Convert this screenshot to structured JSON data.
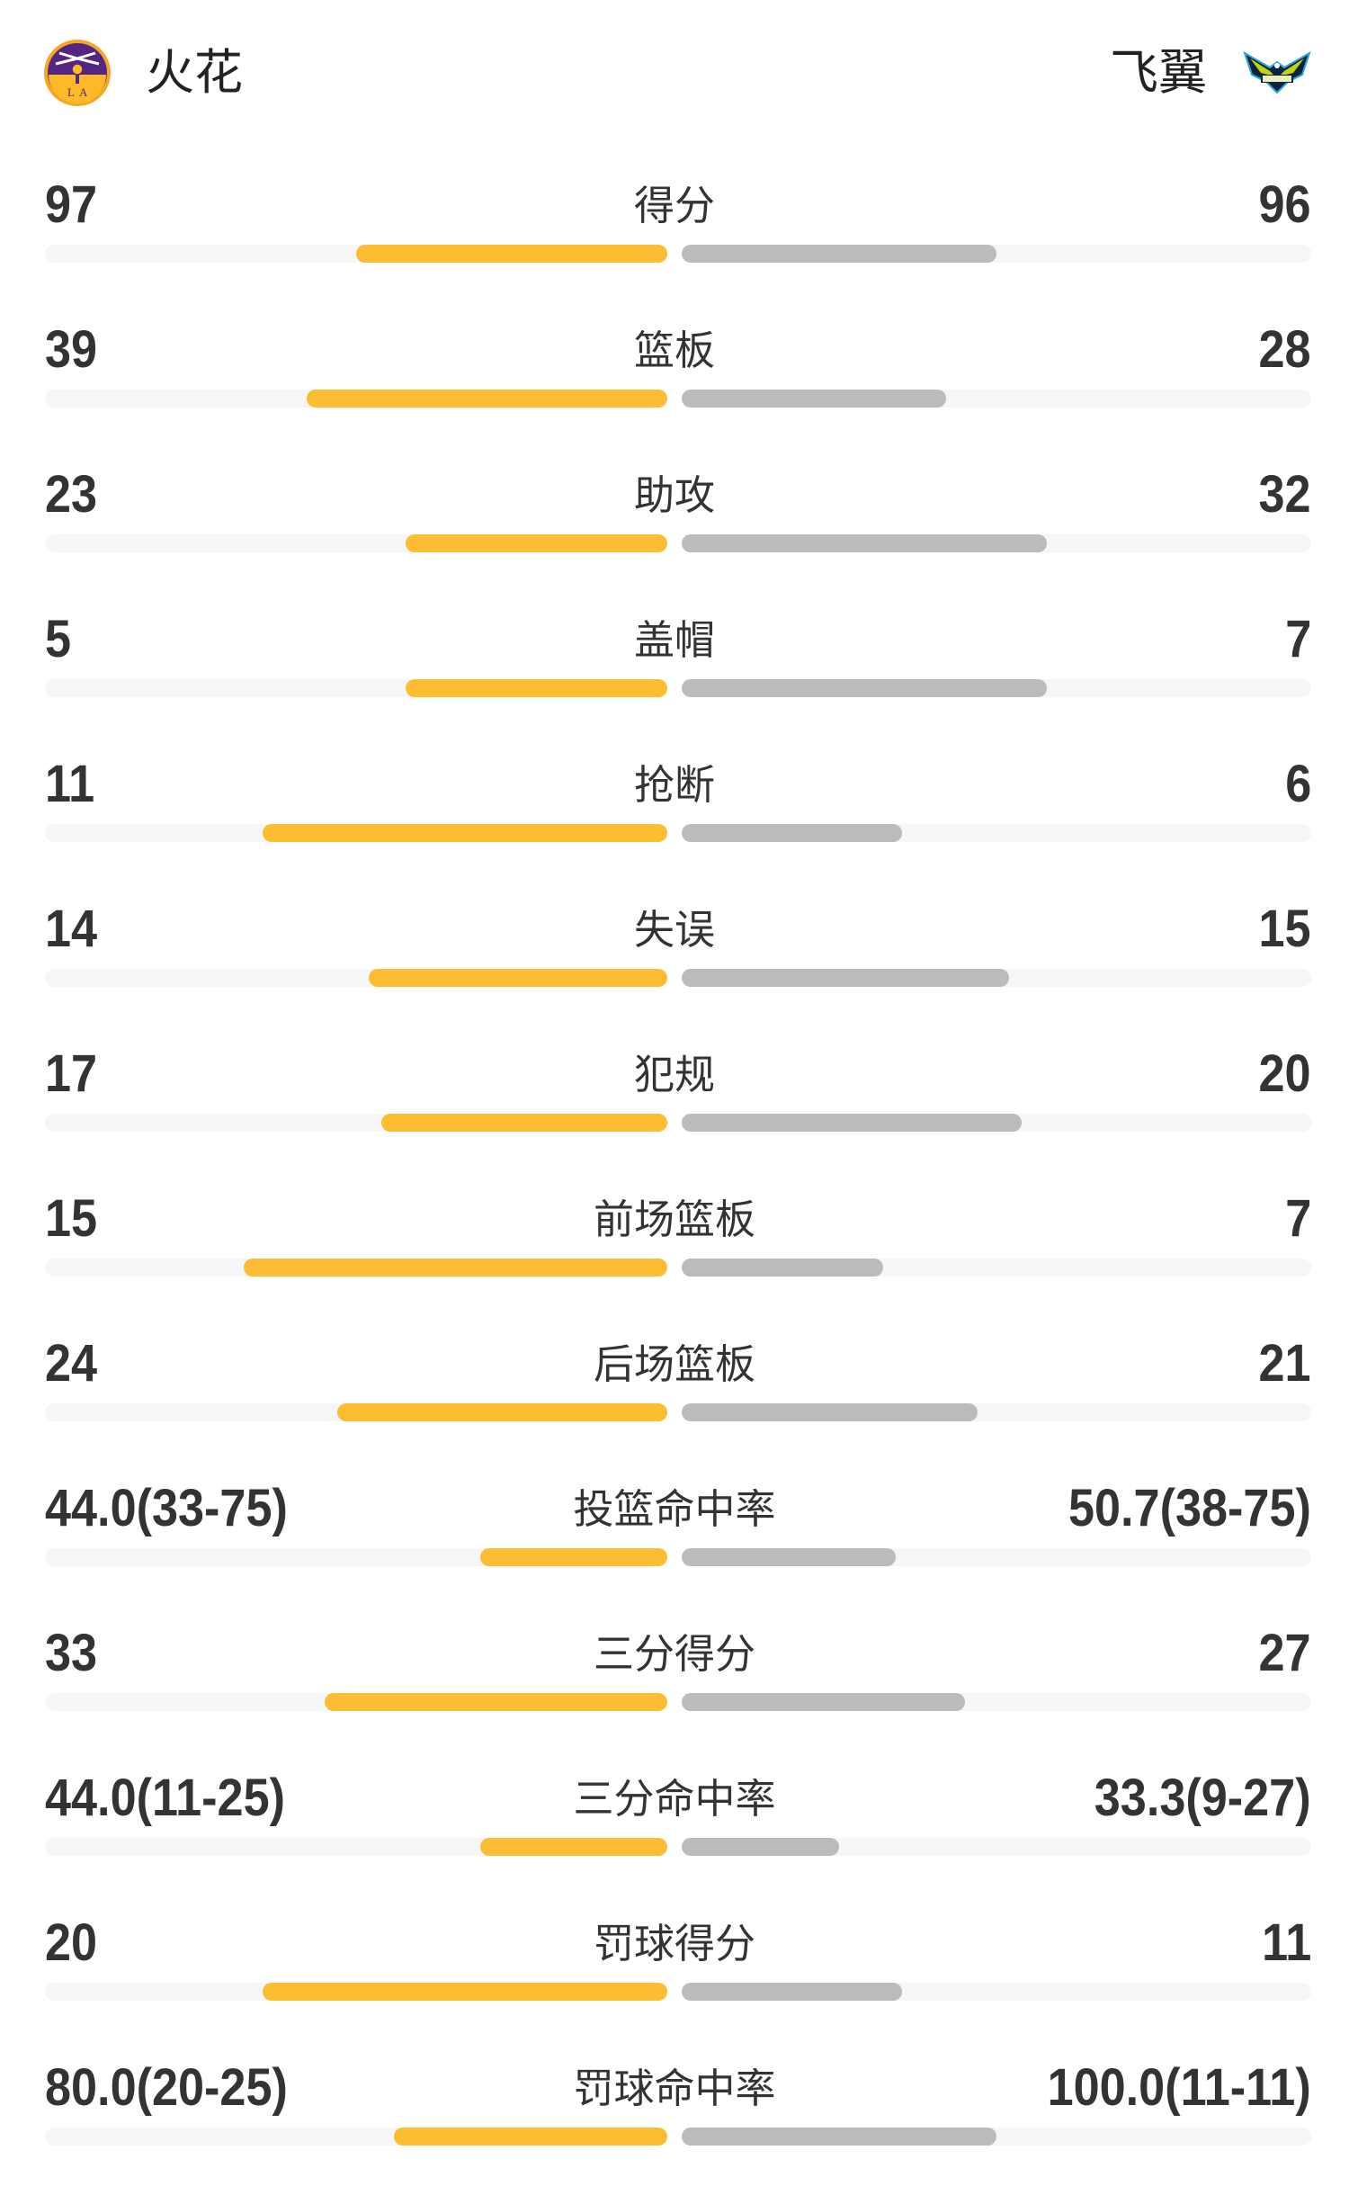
{
  "header": {
    "home_team": "火花",
    "away_team": "飞翼",
    "home_logo_icon": "los-angeles-sparks-logo",
    "away_logo_icon": "dallas-wings-logo"
  },
  "colors": {
    "home_bar": "#fdbd32",
    "away_bar": "#bbbbbb",
    "track": "#f5f6f8",
    "text": "#333333"
  },
  "stats": [
    {
      "label": "得分",
      "home": "97",
      "away": "96",
      "home_fill": 0.5,
      "away_fill": 0.5
    },
    {
      "label": "篮板",
      "home": "39",
      "away": "28",
      "home_fill": 0.58,
      "away_fill": 0.42
    },
    {
      "label": "助攻",
      "home": "23",
      "away": "32",
      "home_fill": 0.42,
      "away_fill": 0.58
    },
    {
      "label": "盖帽",
      "home": "5",
      "away": "7",
      "home_fill": 0.42,
      "away_fill": 0.58
    },
    {
      "label": "抢断",
      "home": "11",
      "away": "6",
      "home_fill": 0.65,
      "away_fill": 0.35
    },
    {
      "label": "失误",
      "home": "14",
      "away": "15",
      "home_fill": 0.48,
      "away_fill": 0.52
    },
    {
      "label": "犯规",
      "home": "17",
      "away": "20",
      "home_fill": 0.46,
      "away_fill": 0.54
    },
    {
      "label": "前场篮板",
      "home": "15",
      "away": "7",
      "home_fill": 0.68,
      "away_fill": 0.32
    },
    {
      "label": "后场篮板",
      "home": "24",
      "away": "21",
      "home_fill": 0.53,
      "away_fill": 0.47
    },
    {
      "label": "投篮命中率",
      "home": "44.0(33-75)",
      "away": "50.7(38-75)",
      "home_fill": 0.3,
      "away_fill": 0.34
    },
    {
      "label": "三分得分",
      "home": "33",
      "away": "27",
      "home_fill": 0.55,
      "away_fill": 0.45
    },
    {
      "label": "三分命中率",
      "home": "44.0(11-25)",
      "away": "33.3(9-27)",
      "home_fill": 0.3,
      "away_fill": 0.25
    },
    {
      "label": "罚球得分",
      "home": "20",
      "away": "11",
      "home_fill": 0.65,
      "away_fill": 0.35
    },
    {
      "label": "罚球命中率",
      "home": "80.0(20-25)",
      "away": "100.0(11-11)",
      "home_fill": 0.44,
      "away_fill": 0.5
    }
  ]
}
